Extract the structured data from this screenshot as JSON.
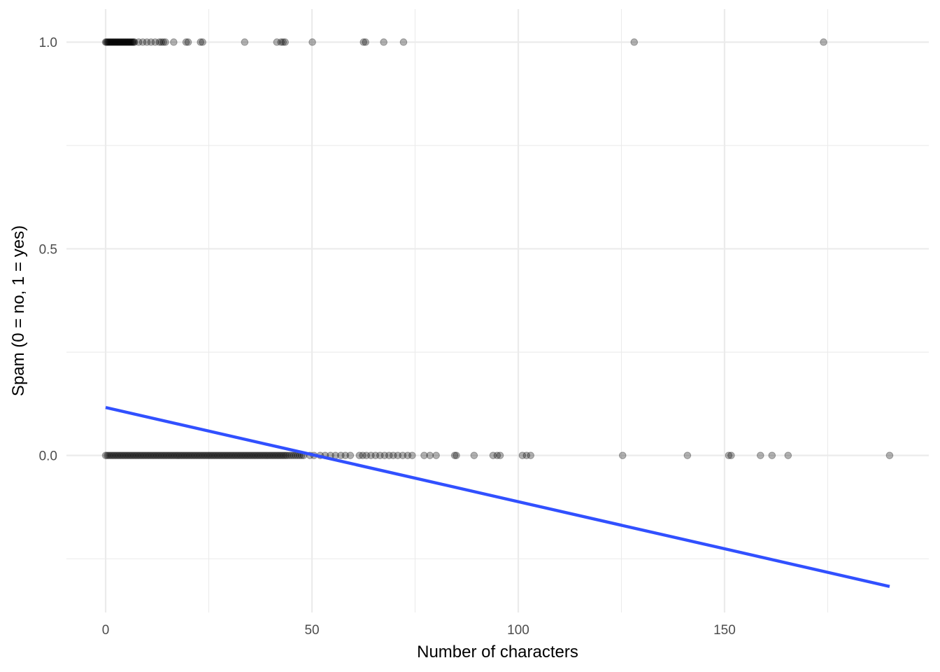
{
  "chart_data": {
    "type": "scatter",
    "title": "",
    "xlabel": "Number of characters",
    "ylabel": "Spam (0 = no, 1 = yes)",
    "xlim": [
      -9.5,
      199.5
    ],
    "ylim": [
      -0.38,
      1.08
    ],
    "x_ticks": [
      0,
      50,
      100,
      150
    ],
    "x_tick_labels": [
      "0",
      "50",
      "100",
      "150"
    ],
    "x_minor_ticks": [
      25,
      75,
      125,
      175
    ],
    "y_ticks": [
      0,
      0.5,
      1
    ],
    "y_tick_labels": [
      "0.0",
      "0.5",
      "1.0"
    ],
    "y_minor_ticks": [
      -0.25,
      0.25,
      0.75
    ],
    "grid": true,
    "legend": "none",
    "colors": {
      "points": "#000000",
      "point_alpha": 0.3,
      "fit_line": "#3150ff",
      "grid": "#ebebeb"
    },
    "series": [
      {
        "type": "scatter",
        "y": 1,
        "x": [
          0,
          0.2,
          0.4,
          0.6,
          0.8,
          1,
          1.2,
          1.4,
          1.6,
          1.8,
          2,
          2.2,
          2.4,
          2.6,
          2.8,
          3,
          3.2,
          3.4,
          3.6,
          3.8,
          4,
          4.2,
          4.4,
          4.6,
          4.8,
          5,
          5.2,
          5.4,
          5.6,
          5.8,
          6,
          6.2,
          6.4,
          6.6,
          6.8,
          7,
          8,
          9,
          10,
          11,
          12,
          13,
          13.5,
          14,
          14.5,
          16.5,
          19.5,
          20,
          23,
          23.5,
          33.7,
          41.5,
          42.5,
          43,
          43.5,
          50.1,
          62.5,
          63,
          67.4,
          72.2,
          128.1,
          174
        ]
      },
      {
        "type": "scatter",
        "y": 0,
        "x": [
          0,
          0.4,
          0.8,
          1.2,
          1.6,
          2,
          2.4,
          2.8,
          3.2,
          3.6,
          4,
          4.4,
          4.8,
          5.2,
          5.6,
          6,
          6.4,
          6.8,
          7.2,
          7.6,
          8,
          8.4,
          8.8,
          9.2,
          9.6,
          10,
          10.4,
          10.8,
          11.2,
          11.6,
          12,
          12.4,
          12.8,
          13.2,
          13.6,
          14,
          14.4,
          14.8,
          15.2,
          15.6,
          16,
          16.4,
          16.8,
          17.2,
          17.6,
          18,
          18.4,
          18.8,
          19.2,
          19.6,
          20,
          20.4,
          20.8,
          21.2,
          21.6,
          22,
          22.4,
          22.8,
          23.2,
          23.6,
          24,
          24.4,
          24.8,
          25.2,
          25.6,
          26,
          26.4,
          26.8,
          27.2,
          27.6,
          28,
          28.4,
          28.8,
          29.2,
          29.6,
          30,
          30.4,
          30.8,
          31.2,
          31.6,
          32,
          32.4,
          32.8,
          33.2,
          33.6,
          34,
          34.4,
          34.8,
          35.2,
          35.6,
          36,
          36.4,
          36.8,
          37.2,
          37.6,
          38,
          38.4,
          38.8,
          39.2,
          39.6,
          40,
          40.4,
          40.8,
          41.2,
          41.6,
          42,
          42.4,
          42.8,
          43.2,
          43.6,
          44,
          44.5,
          45,
          45.5,
          46,
          46.5,
          47,
          47.5,
          48,
          49.5,
          50.5,
          52,
          53.2,
          54.5,
          55.7,
          57,
          58.1,
          59.3,
          61.5,
          62.3,
          63.2,
          64.3,
          65.4,
          66.5,
          67.6,
          68.7,
          69.7,
          70.8,
          72,
          73.2,
          74.3,
          77.2,
          78.6,
          80.1,
          84.6,
          85,
          89.3,
          93.9,
          94.9,
          95.6,
          101,
          102,
          103,
          125.3,
          141,
          151,
          151.6,
          158.7,
          161.5,
          165.4,
          190
        ]
      }
    ],
    "fit_line": {
      "type": "line",
      "x": [
        0,
        190
      ],
      "y": [
        0.116,
        -0.317
      ]
    }
  }
}
